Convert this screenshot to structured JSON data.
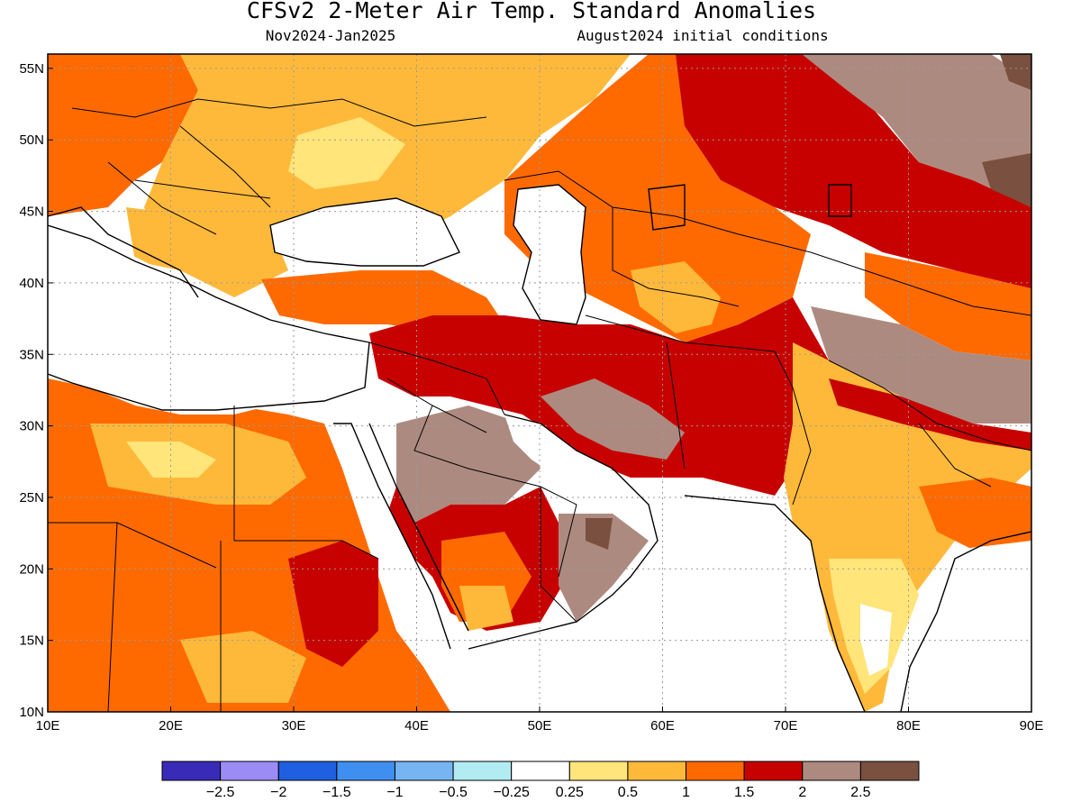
{
  "title": "CFSv2 2-Meter Air Temp. Standard Anomalies",
  "period": "Nov2024-Jan2025",
  "initial_conditions": "August2024 initial conditions",
  "map": {
    "lon_range": [
      10,
      90
    ],
    "lat_range": [
      10,
      56
    ],
    "x_ticks": [
      {
        "value": 10,
        "label": "10E"
      },
      {
        "value": 20,
        "label": "20E"
      },
      {
        "value": 30,
        "label": "30E"
      },
      {
        "value": 40,
        "label": "40E"
      },
      {
        "value": 50,
        "label": "50E"
      },
      {
        "value": 60,
        "label": "60E"
      },
      {
        "value": 70,
        "label": "70E"
      },
      {
        "value": 80,
        "label": "80E"
      },
      {
        "value": 90,
        "label": "90E"
      }
    ],
    "y_ticks": [
      {
        "value": 10,
        "label": "10N"
      },
      {
        "value": 15,
        "label": "15N"
      },
      {
        "value": 20,
        "label": "20N"
      },
      {
        "value": 25,
        "label": "25N"
      },
      {
        "value": 30,
        "label": "30N"
      },
      {
        "value": 35,
        "label": "35N"
      },
      {
        "value": 40,
        "label": "40N"
      },
      {
        "value": 45,
        "label": "45N"
      },
      {
        "value": 50,
        "label": "50N"
      },
      {
        "value": 55,
        "label": "55N"
      }
    ],
    "gridlines": true
  },
  "colorbar": {
    "colors": [
      "#3a2ab8",
      "#9b8cf5",
      "#1f5fe0",
      "#3f8ff0",
      "#76b5f2",
      "#b1ecf2",
      "#ffffff",
      "#ffe57a",
      "#ffb93a",
      "#ff6a00",
      "#c70000",
      "#ad8a80",
      "#7a5040"
    ],
    "labels": [
      "-2.5",
      "-2",
      "-1.5",
      "-1",
      "-0.5",
      "-0.25",
      "0.25",
      "0.5",
      "1",
      "1.5",
      "2",
      "2.5"
    ]
  }
}
